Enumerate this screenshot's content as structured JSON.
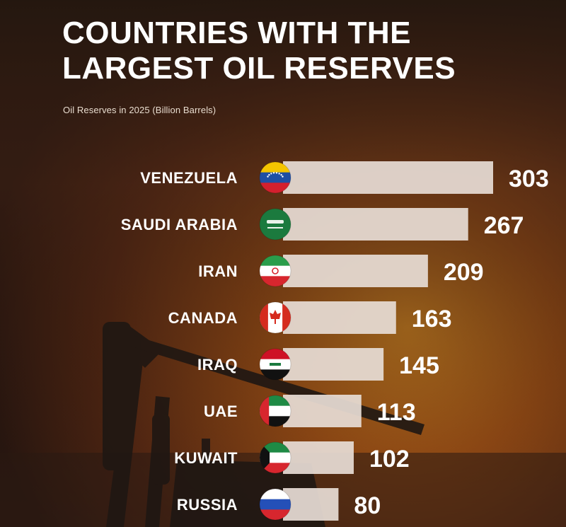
{
  "title_line1": "COUNTRIES WITH THE",
  "title_line2": "LARGEST OIL RESERVES",
  "subtitle": "Oil Reserves in 2025 (Billion Barrels)",
  "colors": {
    "bar": "#e6dcd4",
    "value_text": "#ffffff",
    "label_text": "#ffffff",
    "background_top": "#2b1d15",
    "background_glow": "#c9781f"
  },
  "chart_data": {
    "type": "bar",
    "orientation": "horizontal",
    "categories": [
      "VENEZUELA",
      "SAUDI ARABIA",
      "IRAN",
      "CANADA",
      "IRAQ",
      "UAE",
      "KUWAIT",
      "RUSSIA"
    ],
    "values": [
      303,
      267,
      209,
      163,
      145,
      113,
      102,
      80
    ],
    "flags": [
      "venezuela-flag-icon",
      "saudi-arabia-flag-icon",
      "iran-flag-icon",
      "canada-flag-icon",
      "iraq-flag-icon",
      "uae-flag-icon",
      "kuwait-flag-icon",
      "russia-flag-icon"
    ],
    "title": "COUNTRIES WITH THE LARGEST OIL RESERVES",
    "subtitle": "Oil Reserves in 2025 (Billion Barrels)",
    "xlabel": "",
    "ylabel": "",
    "xlim": [
      0,
      303
    ],
    "grid": false
  }
}
